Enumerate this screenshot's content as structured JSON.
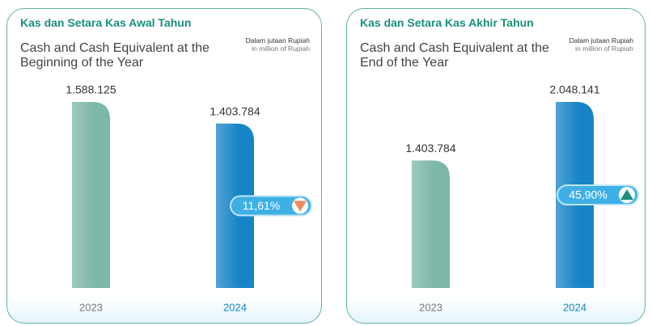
{
  "chart_data": [
    {
      "type": "bar",
      "title": "Kas dan Setara Kas Awal Tahun",
      "subtitle": "Cash and Cash Equivalent at the Beginning of the Year",
      "unit_note": "Dalam jutaan Rupiah",
      "unit_note_en": "in million of Rupiah",
      "categories": [
        "2023",
        "2024"
      ],
      "values": [
        1588125,
        1403784
      ],
      "value_labels": [
        "1.588.125",
        "1.403.784"
      ],
      "colors": [
        "#7db7a8",
        "#1784c7"
      ],
      "change": 11.61,
      "change_label": "11,61%",
      "direction": "down"
    },
    {
      "type": "bar",
      "title": "Kas dan Setara Kas Akhir Tahun",
      "subtitle": "Cash and Cash Equivalent at the End of the Year",
      "unit_note": "Dalam jutaan Rupiah",
      "unit_note_en": "in million of Rupiah",
      "categories": [
        "2023",
        "2024"
      ],
      "values": [
        1403784,
        2048141
      ],
      "value_labels": [
        "1.403.784",
        "2.048.141"
      ],
      "colors": [
        "#7db7a8",
        "#1784c7"
      ],
      "change": 45.9,
      "change_label": "45,90%",
      "direction": "up"
    }
  ]
}
